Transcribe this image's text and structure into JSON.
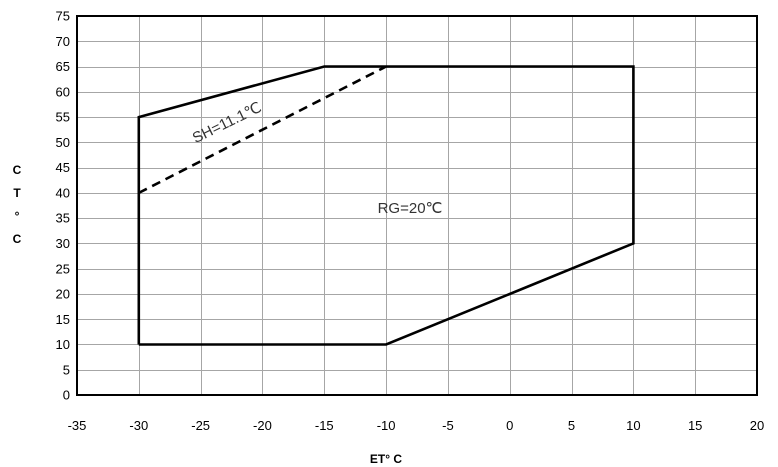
{
  "chart_data": {
    "type": "line",
    "xlabel": "ET° C",
    "ylabel": "CT°C",
    "xlim": [
      -35,
      20
    ],
    "ylim": [
      0,
      75
    ],
    "xticks": [
      -35,
      -30,
      -25,
      -20,
      -15,
      -10,
      -5,
      0,
      5,
      10,
      15,
      20
    ],
    "yticks": [
      0,
      5,
      10,
      15,
      20,
      25,
      30,
      35,
      40,
      45,
      50,
      55,
      60,
      65,
      70,
      75
    ],
    "grid": true,
    "series": [
      {
        "points": [
          [
            -30,
            10
          ],
          [
            -30,
            55
          ],
          [
            -15,
            65
          ],
          [
            10,
            65
          ],
          [
            10,
            30
          ],
          [
            -10,
            10
          ],
          [
            -30,
            10
          ]
        ],
        "dashed": false
      },
      {
        "points": [
          [
            -30,
            40
          ],
          [
            -10,
            65
          ]
        ],
        "dashed": true
      }
    ],
    "annotations": [
      "SH=11.1℃",
      "RG=20℃"
    ],
    "colors": {
      "lines": "#000000",
      "grid": "#a6a6a6",
      "frame": "#000000"
    }
  }
}
